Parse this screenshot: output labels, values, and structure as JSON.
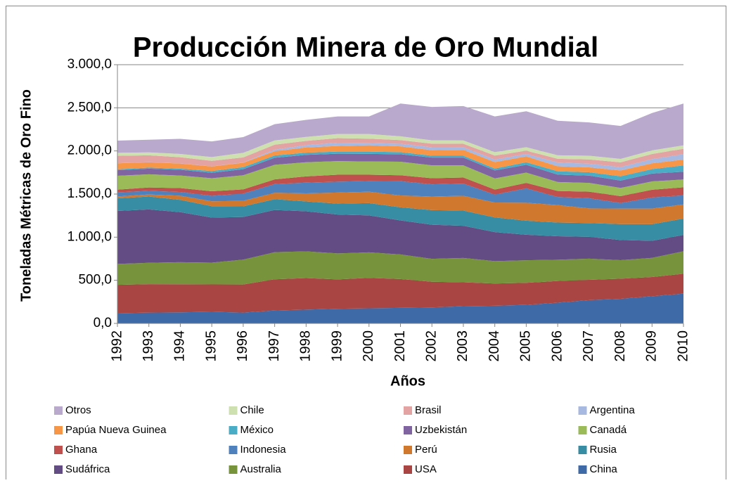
{
  "chart_data": {
    "type": "stacked_area",
    "title": "Producción Minera de Oro Mundial",
    "y_label": "Toneladas Métricas de Oro Fino",
    "x_label": "Años",
    "categories": [
      "1992",
      "1993",
      "1994",
      "1995",
      "1996",
      "1997",
      "1998",
      "1999",
      "2000",
      "2001",
      "2002",
      "2003",
      "2004",
      "2005",
      "2006",
      "2007",
      "2008",
      "2009",
      "2010"
    ],
    "ylim": [
      0,
      3000
    ],
    "yticks": [
      {
        "value": 0,
        "label": "0,0"
      },
      {
        "value": 500,
        "label": "500,0"
      },
      {
        "value": 1000,
        "label": "1.000,0"
      },
      {
        "value": 1500,
        "label": "1.500,0"
      },
      {
        "value": 2000,
        "label": "2.000,0"
      },
      {
        "value": 2500,
        "label": "2.500,0"
      },
      {
        "value": 3000,
        "label": "3.000,0"
      }
    ],
    "grid": true,
    "series": [
      {
        "name": "China",
        "color": "#3f6aa8",
        "values": [
          118,
          125,
          128,
          135,
          125,
          150,
          160,
          170,
          175,
          180,
          185,
          200,
          205,
          215,
          240,
          270,
          285,
          315,
          345
        ]
      },
      {
        "name": "USA",
        "color": "#a94543",
        "values": [
          329,
          331,
          326,
          317,
          326,
          362,
          366,
          341,
          353,
          335,
          298,
          277,
          258,
          256,
          252,
          235,
          234,
          223,
          231
        ]
      },
      {
        "name": "Australia",
        "color": "#77933c",
        "values": [
          243,
          247,
          256,
          253,
          289,
          314,
          310,
          301,
          296,
          285,
          266,
          282,
          259,
          262,
          247,
          246,
          215,
          222,
          261
        ]
      },
      {
        "name": "Sudáfrica",
        "color": "#634c84",
        "values": [
          614,
          619,
          580,
          522,
          494,
          490,
          464,
          451,
          428,
          394,
          395,
          373,
          337,
          295,
          272,
          253,
          233,
          198,
          189
        ]
      },
      {
        "name": "Rusia",
        "color": "#378ea4",
        "values": [
          146,
          149,
          143,
          132,
          123,
          125,
          114,
          126,
          143,
          152,
          170,
          176,
          170,
          163,
          159,
          160,
          185,
          192,
          190
        ]
      },
      {
        "name": "Perú",
        "color": "#d1782f",
        "values": [
          22,
          24,
          48,
          57,
          65,
          74,
          94,
          128,
          133,
          138,
          157,
          172,
          173,
          208,
          203,
          170,
          180,
          182,
          164
        ]
      },
      {
        "name": "Indonesia",
        "color": "#4f81bd",
        "values": [
          48,
          42,
          43,
          64,
          83,
          101,
          124,
          127,
          124,
          166,
          142,
          141,
          92,
          167,
          93,
          118,
          64,
          128,
          106
        ]
      },
      {
        "name": "Ghana",
        "color": "#c0504d",
        "values": [
          31,
          39,
          45,
          53,
          49,
          54,
          73,
          80,
          72,
          68,
          70,
          71,
          58,
          63,
          70,
          76,
          80,
          90,
          92
        ]
      },
      {
        "name": "Canadá",
        "color": "#9bbb59",
        "values": [
          161,
          153,
          146,
          150,
          164,
          169,
          164,
          158,
          154,
          157,
          150,
          141,
          129,
          120,
          104,
          101,
          95,
          97,
          91
        ]
      },
      {
        "name": "Uzbekistán",
        "color": "#8064a2",
        "values": [
          64,
          66,
          66,
          64,
          70,
          82,
          85,
          86,
          88,
          87,
          90,
          90,
          93,
          90,
          85,
          85,
          85,
          90,
          90
        ]
      },
      {
        "name": "México",
        "color": "#4bacc6",
        "values": [
          10,
          12,
          13,
          20,
          24,
          26,
          26,
          24,
          26,
          24,
          21,
          21,
          22,
          30,
          39,
          39,
          50,
          52,
          73
        ]
      },
      {
        "name": "Papúa Nueva Guinea",
        "color": "#f79646",
        "values": [
          71,
          61,
          60,
          53,
          51,
          49,
          61,
          65,
          74,
          67,
          65,
          69,
          75,
          68,
          58,
          57,
          67,
          68,
          67
        ]
      },
      {
        "name": "Argentina",
        "color": "#a7b9e1",
        "values": [
          1,
          1,
          1,
          1,
          2,
          19,
          26,
          38,
          26,
          30,
          33,
          30,
          28,
          28,
          44,
          42,
          40,
          48,
          64
        ]
      },
      {
        "name": "Brasil",
        "color": "#e4a3a3",
        "values": [
          85,
          80,
          72,
          64,
          60,
          58,
          50,
          53,
          50,
          43,
          42,
          40,
          47,
          38,
          43,
          50,
          55,
          60,
          62
        ]
      },
      {
        "name": "Chile",
        "color": "#cfe0b0",
        "values": [
          35,
          34,
          38,
          44,
          53,
          49,
          45,
          48,
          54,
          43,
          39,
          39,
          40,
          40,
          40,
          42,
          40,
          41,
          40
        ]
      },
      {
        "name": "Otros",
        "color": "#b9a9cc",
        "values": [
          142,
          147,
          175,
          181,
          182,
          188,
          198,
          204,
          204,
          381,
          387,
          398,
          414,
          417,
          401,
          386,
          382,
          434,
          485
        ]
      }
    ]
  }
}
